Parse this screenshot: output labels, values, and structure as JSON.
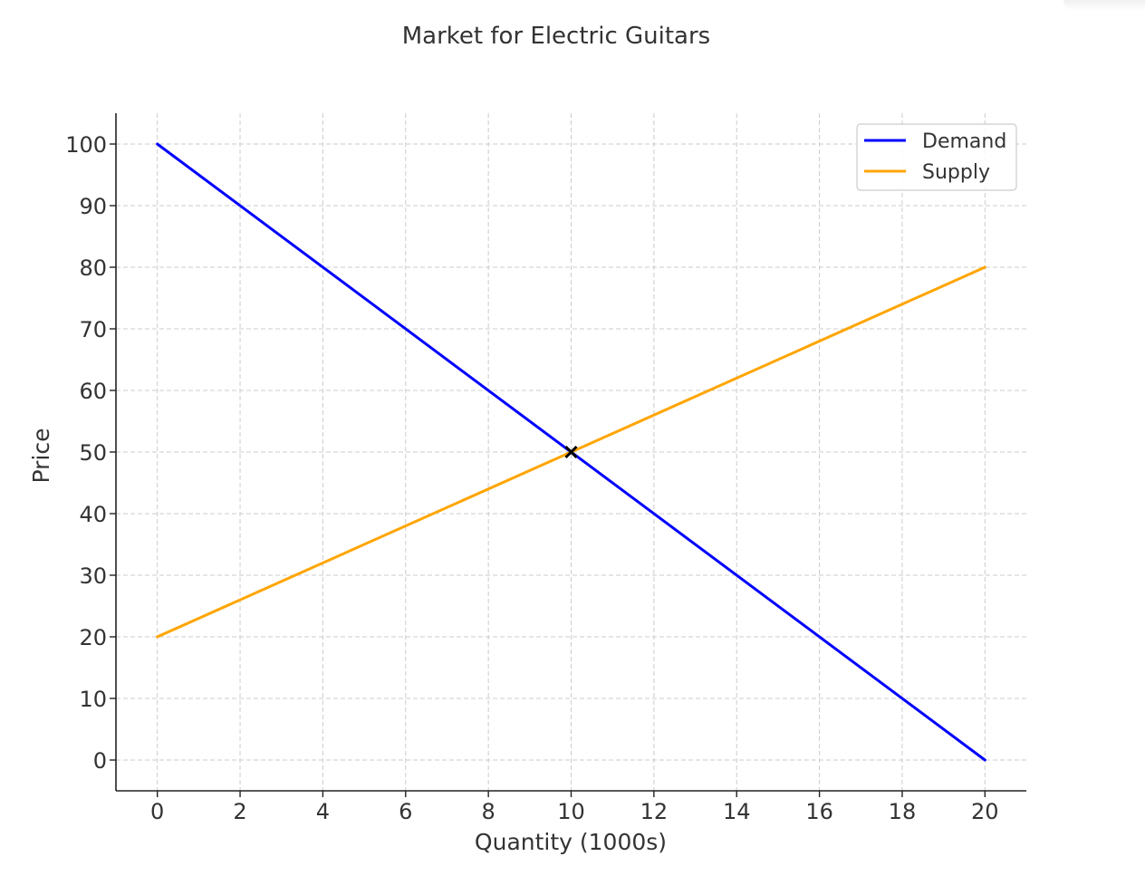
{
  "chart_data": {
    "type": "line",
    "title": "Market for Electric Guitars",
    "xlabel": "Quantity (1000s)",
    "ylabel": "Price",
    "xlim": [
      -1,
      21
    ],
    "ylim": [
      -5,
      105
    ],
    "xticks": [
      0,
      2,
      4,
      6,
      8,
      10,
      12,
      14,
      16,
      18,
      20
    ],
    "yticks": [
      0,
      10,
      20,
      30,
      40,
      50,
      60,
      70,
      80,
      90,
      100
    ],
    "grid": true,
    "legend_position": "top-right",
    "series": [
      {
        "name": "Demand",
        "color": "#0000ff",
        "x": [
          0,
          20
        ],
        "y": [
          100,
          0
        ]
      },
      {
        "name": "Supply",
        "color": "#ffa500",
        "x": [
          0,
          20
        ],
        "y": [
          20,
          80
        ]
      }
    ],
    "markers": [
      {
        "x": 10,
        "y": 50,
        "symbol": "x",
        "color": "#000000"
      }
    ]
  }
}
